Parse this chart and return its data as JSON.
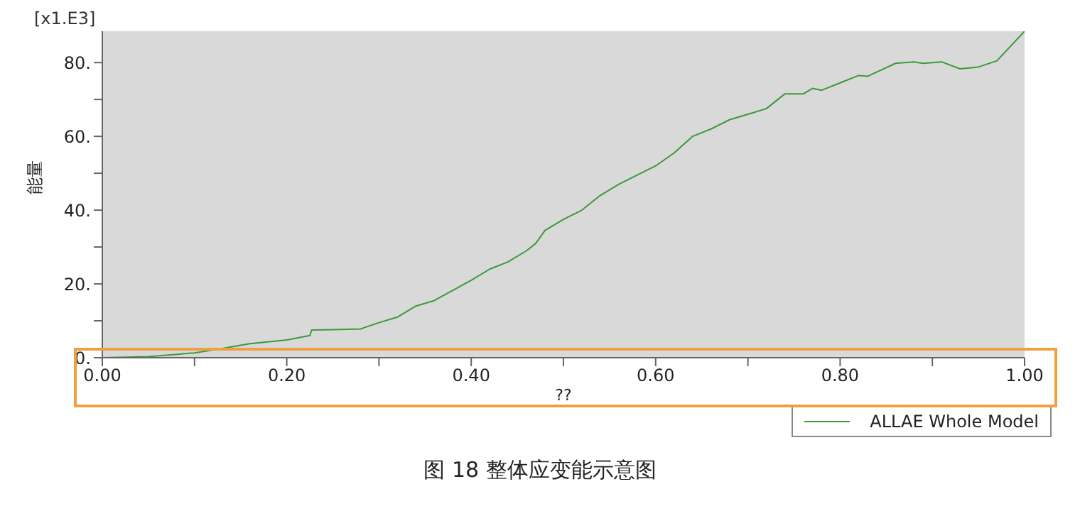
{
  "chart_data": {
    "type": "line",
    "title": "图 18 整体应变能示意图",
    "xlabel": "??",
    "ylabel": "能量",
    "annotations": [
      "[x1.E3]"
    ],
    "xlim": [
      0,
      1
    ],
    "ylim": [
      0,
      88.5
    ],
    "xticks": [
      {
        "value": 0,
        "label": "0.00"
      },
      {
        "value": 0.1,
        "label": null
      },
      {
        "value": 0.2,
        "label": "0.20"
      },
      {
        "value": 0.3,
        "label": null
      },
      {
        "value": 0.4,
        "label": "0.40"
      },
      {
        "value": 0.5,
        "label": null
      },
      {
        "value": 0.6,
        "label": "0.60"
      },
      {
        "value": 0.7,
        "label": null
      },
      {
        "value": 0.8,
        "label": "0.80"
      },
      {
        "value": 0.9,
        "label": null
      },
      {
        "value": 1,
        "label": "1.00"
      }
    ],
    "yticks": [
      {
        "value": 0,
        "label": "0."
      },
      {
        "value": 10,
        "label": null
      },
      {
        "value": 20,
        "label": "20."
      },
      {
        "value": 30,
        "label": null
      },
      {
        "value": 40,
        "label": "40."
      },
      {
        "value": 50,
        "label": null
      },
      {
        "value": 60,
        "label": "60."
      },
      {
        "value": 70,
        "label": null
      },
      {
        "value": 80,
        "label": "80."
      }
    ],
    "grid": false,
    "legend": "bottom right",
    "marker": "none",
    "line_style": "solid",
    "series": [
      {
        "name": "ALLAE Whole Model",
        "color": "#3a9a3a",
        "x": [
          0,
          0.05,
          0.1,
          0.13,
          0.16,
          0.2,
          0.225,
          0.227,
          0.25,
          0.28,
          0.3,
          0.32,
          0.34,
          0.36,
          0.4,
          0.42,
          0.44,
          0.46,
          0.47,
          0.48,
          0.5,
          0.52,
          0.54,
          0.56,
          0.58,
          0.6,
          0.62,
          0.64,
          0.66,
          0.68,
          0.7,
          0.72,
          0.74,
          0.76,
          0.77,
          0.78,
          0.8,
          0.82,
          0.83,
          0.86,
          0.88,
          0.89,
          0.91,
          0.93,
          0.95,
          0.97,
          1
        ],
        "values": [
          0,
          0.3,
          1.3,
          2.5,
          3.8,
          4.8,
          6,
          7.5,
          7.6,
          7.8,
          9.5,
          11,
          14,
          15.5,
          21,
          24,
          26,
          29,
          31,
          34.5,
          37.5,
          40,
          44,
          47,
          49.5,
          52,
          55.5,
          60,
          62,
          64.5,
          66,
          67.5,
          71.5,
          71.5,
          73,
          72.5,
          74.5,
          76.5,
          76.3,
          79.8,
          80.2,
          79.8,
          80.2,
          78.3,
          78.8,
          80.5,
          88.5
        ]
      }
    ]
  }
}
